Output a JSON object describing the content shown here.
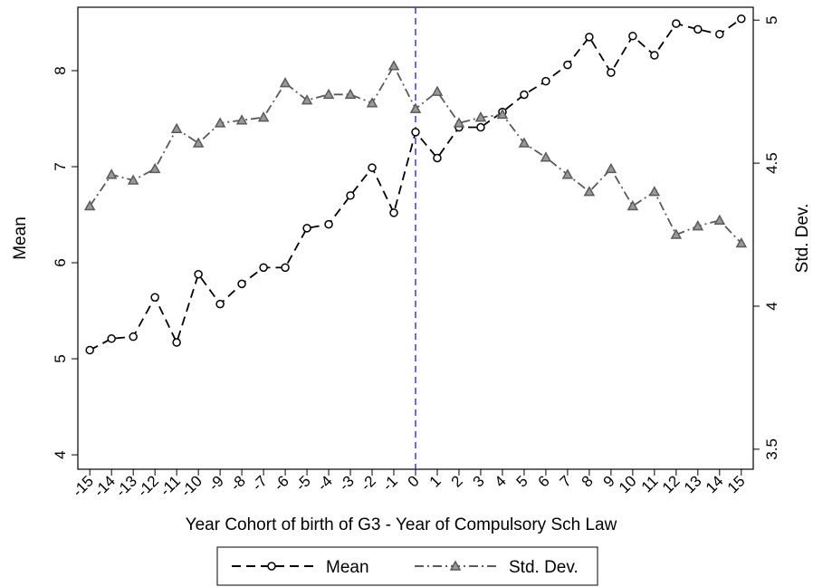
{
  "chart_data": {
    "type": "line",
    "x_label": "Year Cohort of birth of G3 - Year of Compulsory Sch Law",
    "y_label": "Mean",
    "y2_label": "Std. Dev.",
    "x": [
      -15,
      -14,
      -13,
      -12,
      -11,
      -10,
      -9,
      -8,
      -7,
      -6,
      -5,
      -4,
      -3,
      -2,
      -1,
      0,
      1,
      2,
      3,
      4,
      5,
      6,
      7,
      8,
      9,
      10,
      11,
      12,
      13,
      14,
      15
    ],
    "series": [
      {
        "name": "Mean",
        "color": "#000000",
        "marker": "circle",
        "dash": "dash",
        "values": [
          5.09,
          5.21,
          5.23,
          5.64,
          5.17,
          5.88,
          5.57,
          5.78,
          5.95,
          5.95,
          6.36,
          6.4,
          6.7,
          6.99,
          6.52,
          7.36,
          7.09,
          7.41,
          7.41,
          7.57,
          7.75,
          7.89,
          8.06,
          8.35,
          7.98,
          8.36,
          8.16,
          8.49,
          8.43,
          8.38,
          8.54
        ]
      },
      {
        "name": "Std. Dev.",
        "color": "#5a5a5a",
        "marker": "triangle",
        "dash": "dashdot",
        "axis": "y2",
        "values": [
          4.35,
          4.46,
          4.44,
          4.48,
          4.62,
          4.57,
          4.64,
          4.65,
          4.66,
          4.78,
          4.72,
          4.74,
          4.74,
          4.71,
          4.84,
          4.69,
          4.75,
          4.64,
          4.66,
          4.67,
          4.57,
          4.52,
          4.46,
          4.4,
          4.48,
          4.35,
          4.4,
          4.25,
          4.28,
          4.3,
          4.22
        ]
      }
    ],
    "xlim": [
      -15.55,
      15.55
    ],
    "xticks": [
      -15,
      -14,
      -13,
      -12,
      -11,
      -10,
      -9,
      -8,
      -7,
      -6,
      -5,
      -4,
      -3,
      -2,
      -1,
      0,
      1,
      2,
      3,
      4,
      5,
      6,
      7,
      8,
      9,
      10,
      11,
      12,
      13,
      14,
      15
    ],
    "ylim": [
      3.85,
      8.66
    ],
    "yticks": [
      4,
      5,
      6,
      7,
      8
    ],
    "y2lim": [
      3.43,
      5.045
    ],
    "y2ticks": [
      3.5,
      4,
      4.5,
      5
    ],
    "vline": 0,
    "vline_color": "#3a3adf",
    "legend": "bottom"
  }
}
